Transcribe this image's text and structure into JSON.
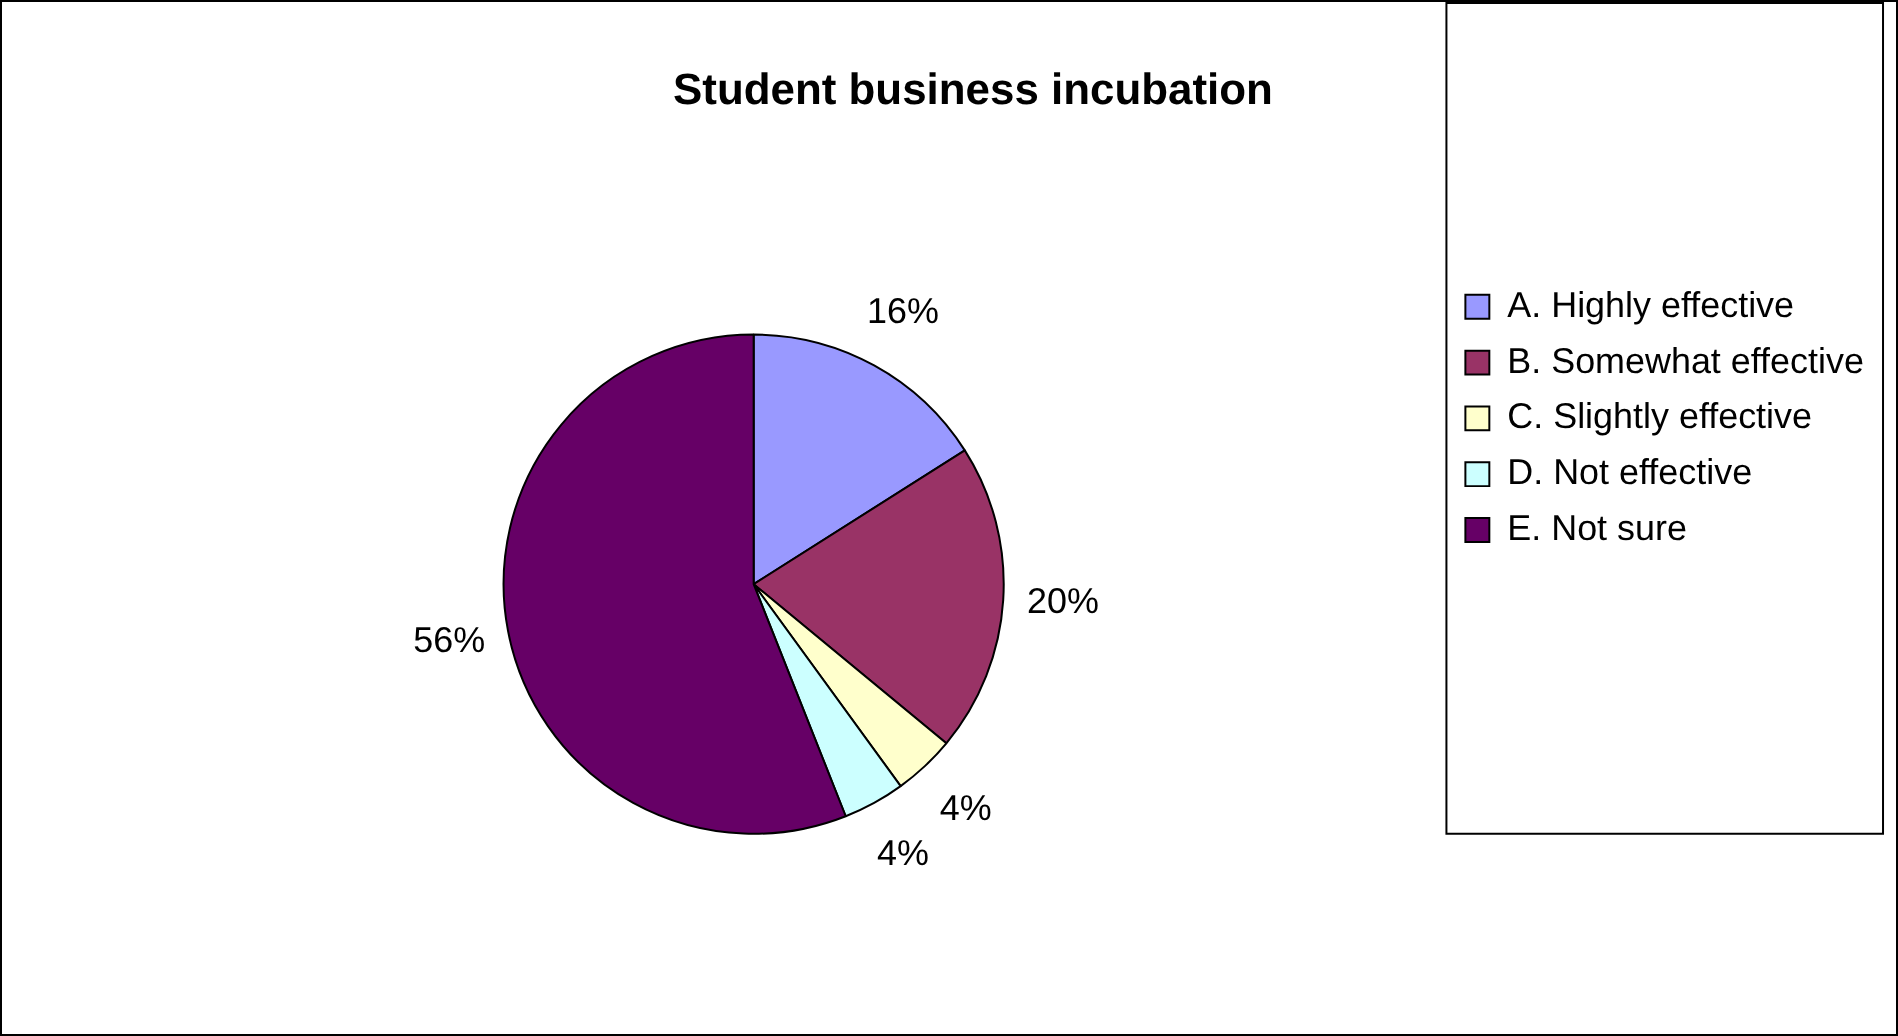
{
  "chart_data": {
    "type": "pie",
    "title": "Student business incubation",
    "categories": [
      "A. Highly effective",
      "B. Somewhat effective",
      "C. Slightly effective",
      "D. Not effective",
      "E. Not sure"
    ],
    "values": [
      16,
      20,
      4,
      4,
      56
    ],
    "colors": [
      "#9999ff",
      "#993366",
      "#ffffcc",
      "#ccffff",
      "#660066"
    ],
    "value_labels": [
      "16%",
      "20%",
      "4%",
      "4%",
      "56%"
    ],
    "legend": "right"
  }
}
